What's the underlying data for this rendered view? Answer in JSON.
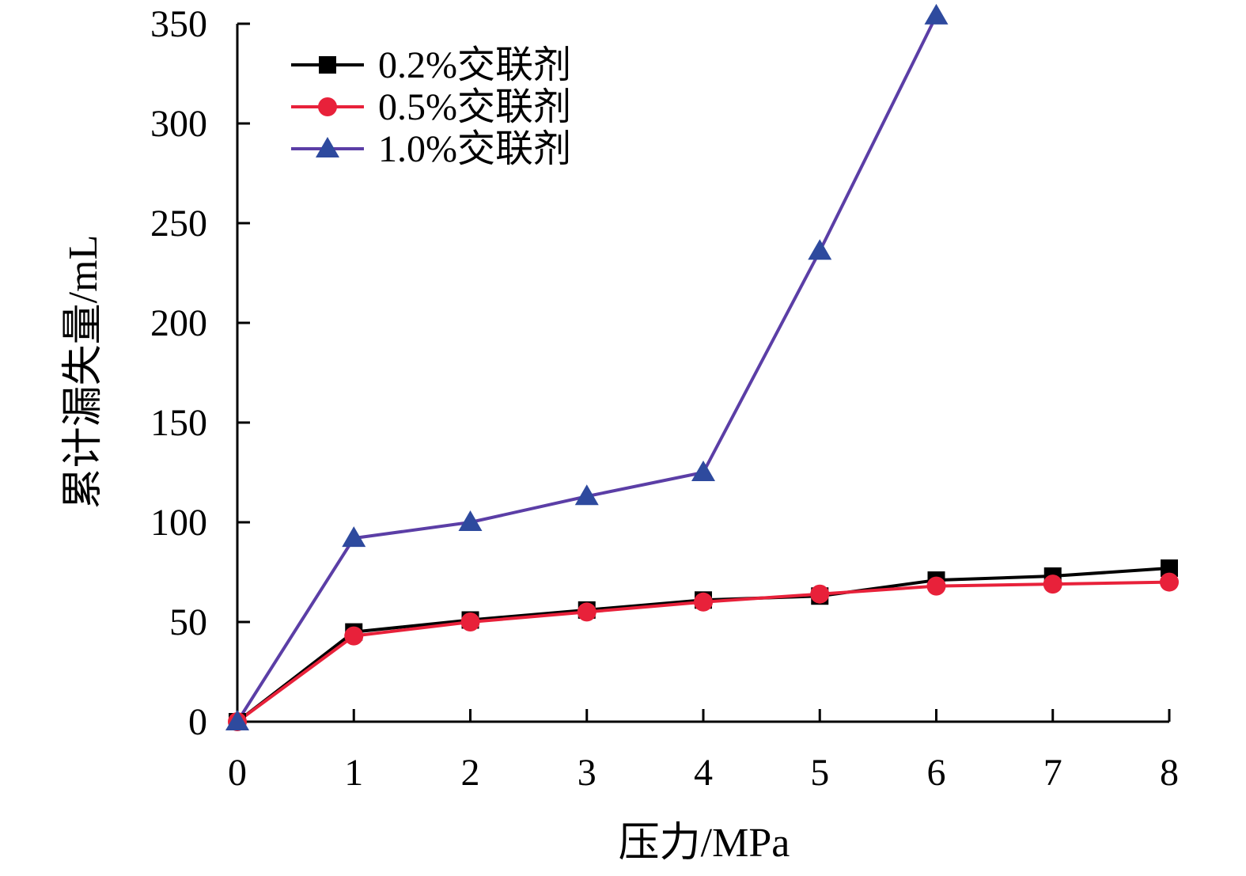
{
  "chart_data": {
    "type": "line",
    "title": "",
    "xlabel": "压力/MPa",
    "ylabel": "累计漏失量/mL",
    "xlim": [
      0,
      8
    ],
    "ylim": [
      0,
      350
    ],
    "xticks": [
      0,
      1,
      2,
      3,
      4,
      5,
      6,
      7,
      8
    ],
    "yticks": [
      0,
      50,
      100,
      150,
      200,
      250,
      300,
      350
    ],
    "grid": false,
    "legend_position": "top-left",
    "series": [
      {
        "name": "0.2%交联剂",
        "color": "#000000",
        "marker": "square",
        "x": [
          0,
          1,
          2,
          3,
          4,
          5,
          6,
          7,
          8
        ],
        "y": [
          0,
          45,
          51,
          56,
          61,
          63,
          71,
          73,
          77
        ]
      },
      {
        "name": "0.5%交联剂",
        "color": "#e8213a",
        "marker": "circle",
        "x": [
          0,
          1,
          2,
          3,
          4,
          5,
          6,
          7,
          8
        ],
        "y": [
          0,
          43,
          50,
          55,
          60,
          64,
          68,
          69,
          70
        ]
      },
      {
        "name": "1.0%交联剂",
        "color": "#2e4a9e",
        "line_color": "#5b3ea6",
        "marker": "triangle",
        "x": [
          0,
          1,
          2,
          3,
          4,
          5,
          6
        ],
        "y": [
          0,
          92,
          100,
          113,
          125,
          236,
          354
        ]
      }
    ]
  }
}
